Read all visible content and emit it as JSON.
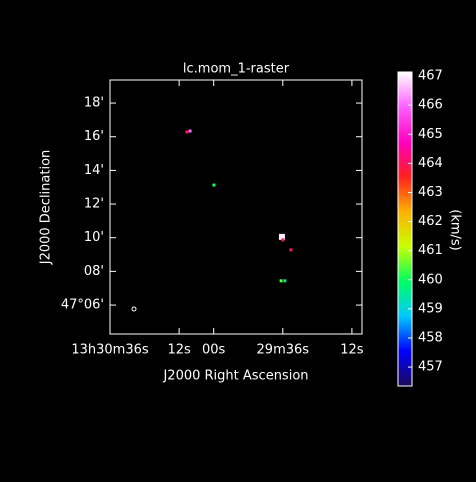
{
  "chart_data": {
    "type": "scatter",
    "title": "lc.mom_1-raster",
    "x_label": "J2000 Right Ascension",
    "y_label": "J2000 Declination",
    "colorbar_label": "(km/s)",
    "xlim": [
      1836,
      1748.5
    ],
    "ylim": [
      4.28,
      19.37
    ],
    "xticks": [
      {
        "value": 1836,
        "label": "13h30m36s"
      },
      {
        "value": 1812,
        "label": "12s"
      },
      {
        "value": 1800,
        "label": "00s"
      },
      {
        "value": 1776,
        "label": "29m36s"
      },
      {
        "value": 1752,
        "label": "12s"
      }
    ],
    "yticks": [
      {
        "value": 18,
        "label": "18'"
      },
      {
        "value": 16,
        "label": "16'"
      },
      {
        "value": 14,
        "label": "14'"
      },
      {
        "value": 12,
        "label": "12'"
      },
      {
        "value": 10,
        "label": "10'"
      },
      {
        "value": 8,
        "label": "08'"
      },
      {
        "value": 6,
        "label": "47°06'"
      }
    ],
    "clim": [
      456.35,
      467.14
    ],
    "cticks": [
      457,
      458,
      459,
      460,
      461,
      462,
      463,
      464,
      465,
      466,
      467
    ],
    "colormap": [
      "#1a0a5a",
      "#0000ff",
      "#00c8ff",
      "#00ff60",
      "#c8ff00",
      "#ffb000",
      "#ff2020",
      "#ff00c0",
      "#ff60ff",
      "#ffffff"
    ],
    "x": [
      1809.3,
      1808.2,
      1799.9,
      1776.3,
      1776.0,
      1773.2,
      1775.3,
      1776.6
    ],
    "y": [
      16.28,
      16.34,
      13.13,
      10.05,
      9.87,
      9.28,
      7.44,
      7.44
    ],
    "values": [
      464,
      466,
      460,
      467,
      464,
      464,
      459.5,
      460.5
    ]
  }
}
